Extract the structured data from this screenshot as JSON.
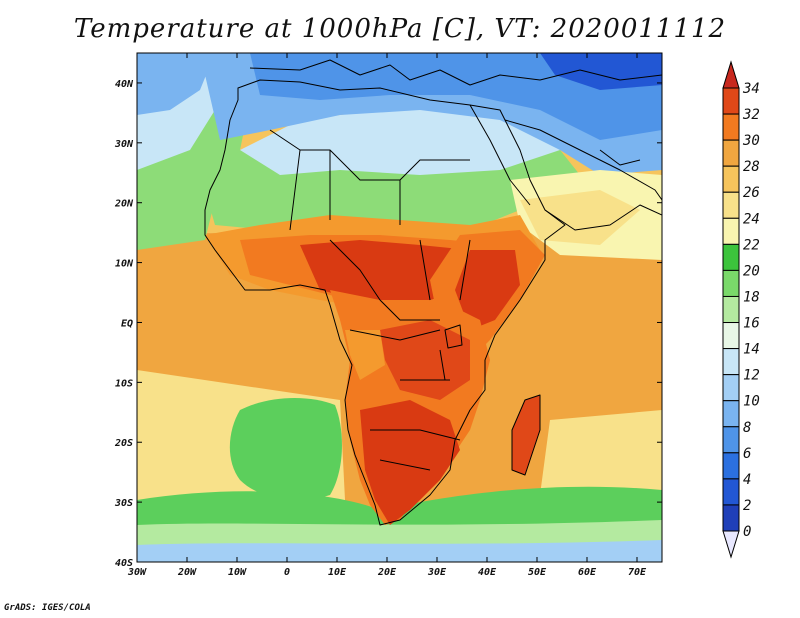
{
  "title": "Temperature at 1000hPa [C], VT: 2020011112",
  "footer": "GrADS: IGES/COLA",
  "colors": {
    "ocean_tropical": "#f0a640",
    "ocean_subtropical": "#f6c45c",
    "ocean_cool_band": "#f8e18a",
    "ocean_south_green": "#5ccf5c",
    "ocean_south_cold": "#a8e6f0",
    "land_hot": "#d93a12",
    "land_warm": "#f27a20",
    "sahel_warm": "#f49a2e",
    "sahara_green": "#8ddc78",
    "med_blue": "#4f94e8",
    "coastline": "#000000"
  },
  "chart_data": {
    "type": "heatmap",
    "variable": "Temperature at 1000hPa [C]",
    "valid_time": "2020011112",
    "xlim": [
      -30,
      75
    ],
    "ylim": [
      -40,
      45
    ],
    "x_ticks": [
      {
        "value": -30,
        "label": "30W"
      },
      {
        "value": -20,
        "label": "20W"
      },
      {
        "value": -10,
        "label": "10W"
      },
      {
        "value": 0,
        "label": "0"
      },
      {
        "value": 10,
        "label": "10E"
      },
      {
        "value": 20,
        "label": "20E"
      },
      {
        "value": 30,
        "label": "30E"
      },
      {
        "value": 40,
        "label": "40E"
      },
      {
        "value": 50,
        "label": "50E"
      },
      {
        "value": 60,
        "label": "60E"
      },
      {
        "value": 70,
        "label": "70E"
      }
    ],
    "y_ticks": [
      {
        "value": 40,
        "label": "40N"
      },
      {
        "value": 30,
        "label": "30N"
      },
      {
        "value": 20,
        "label": "20N"
      },
      {
        "value": 10,
        "label": "10N"
      },
      {
        "value": 0,
        "label": "EQ"
      },
      {
        "value": -10,
        "label": "10S"
      },
      {
        "value": -20,
        "label": "20S"
      },
      {
        "value": -30,
        "label": "30S"
      },
      {
        "value": -40,
        "label": "40S"
      }
    ],
    "colorbar": {
      "levels": [
        0,
        2,
        4,
        6,
        8,
        10,
        12,
        14,
        16,
        18,
        20,
        22,
        24,
        26,
        28,
        30,
        32,
        34
      ],
      "colors": [
        "#1b2a8c",
        "#1f3fb8",
        "#2257d4",
        "#2b70e0",
        "#4f94e8",
        "#7ab4f0",
        "#a3cff5",
        "#c8e6f7",
        "#e8f7e6",
        "#b4eaa0",
        "#7ad96a",
        "#3cc43c",
        "#f9f5b0",
        "#f8e18a",
        "#f6c45c",
        "#f0a640",
        "#f27a20",
        "#e04818",
        "#c8281e"
      ]
    }
  }
}
